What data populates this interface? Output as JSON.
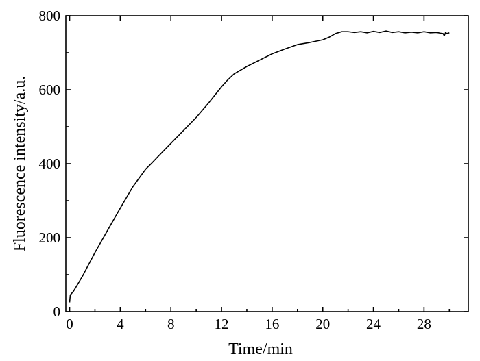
{
  "chart_data": {
    "type": "line",
    "title": "",
    "xlabel": "Time/min",
    "ylabel": "Fluorescence intensity/a.u.",
    "xlim": [
      -0.3,
      31.5
    ],
    "ylim": [
      0,
      800
    ],
    "x_ticks": [
      0,
      4,
      8,
      12,
      16,
      20,
      24,
      28
    ],
    "x_minor_ticks": [
      2,
      6,
      10,
      14,
      18,
      22,
      26,
      30
    ],
    "y_ticks": [
      0,
      200,
      400,
      600,
      800
    ],
    "y_minor_ticks": [
      100,
      300,
      500,
      700
    ],
    "grid": false,
    "legend": "none",
    "line_color": "#000000",
    "series": [
      {
        "x": [
          0,
          0.05,
          0.3,
          1,
          2,
          3,
          4,
          5,
          6,
          6.5,
          7,
          8,
          9,
          10,
          11,
          12,
          12.5,
          13,
          14,
          15,
          16,
          17,
          18,
          19,
          20,
          20.5,
          21,
          21.5,
          22,
          22.5,
          23,
          23.5,
          24,
          24.5,
          25,
          25.5,
          26,
          26.5,
          27,
          27.5,
          28,
          28.5,
          29,
          29.3,
          29.5,
          29.6,
          29.7,
          29.8,
          30
        ],
        "y": [
          25,
          45,
          55,
          95,
          160,
          220,
          280,
          338,
          385,
          402,
          420,
          455,
          490,
          525,
          565,
          608,
          627,
          643,
          663,
          680,
          697,
          710,
          722,
          728,
          735,
          742,
          752,
          757,
          757,
          755,
          757,
          754,
          758,
          755,
          759,
          755,
          757,
          754,
          756,
          754,
          757,
          754,
          755,
          753,
          752,
          746,
          755,
          752,
          754
        ]
      }
    ]
  }
}
